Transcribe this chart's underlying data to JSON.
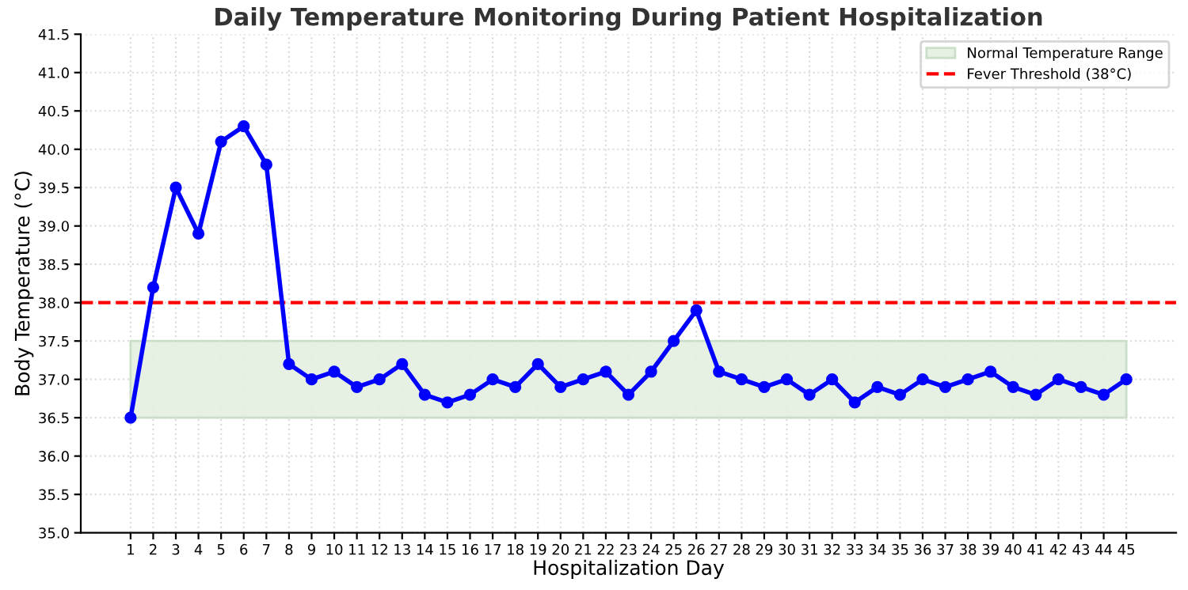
{
  "chart_data": {
    "type": "line",
    "title": "Daily Temperature Monitoring During Patient Hospitalization",
    "xlabel": "Hospitalization Day",
    "ylabel": "Body Temperature (°C)",
    "x": [
      1,
      2,
      3,
      4,
      5,
      6,
      7,
      8,
      9,
      10,
      11,
      12,
      13,
      14,
      15,
      16,
      17,
      18,
      19,
      20,
      21,
      22,
      23,
      24,
      25,
      26,
      27,
      28,
      29,
      30,
      31,
      32,
      33,
      34,
      35,
      36,
      37,
      38,
      39,
      40,
      41,
      42,
      43,
      44,
      45
    ],
    "series": [
      {
        "color": "#0000ff",
        "values": [
          36.5,
          38.2,
          39.5,
          38.9,
          40.1,
          40.3,
          39.8,
          37.2,
          37.0,
          37.1,
          36.9,
          37.0,
          37.2,
          36.8,
          36.7,
          36.8,
          37.0,
          36.9,
          37.2,
          36.9,
          37.0,
          37.1,
          36.8,
          37.1,
          37.5,
          37.9,
          37.1,
          37.0,
          36.9,
          37.0,
          36.8,
          37.0,
          36.7,
          36.9,
          36.8,
          37.0,
          36.9,
          37.0,
          37.1,
          36.9,
          36.8,
          37.0,
          36.9,
          36.8,
          37.0
        ]
      }
    ],
    "xlim": [
      -1.2,
      47.2
    ],
    "xticks": [
      1,
      2,
      3,
      4,
      5,
      6,
      7,
      8,
      9,
      10,
      11,
      12,
      13,
      14,
      15,
      16,
      17,
      18,
      19,
      20,
      21,
      22,
      23,
      24,
      25,
      26,
      27,
      28,
      29,
      30,
      31,
      32,
      33,
      34,
      35,
      36,
      37,
      38,
      39,
      40,
      41,
      42,
      43,
      44,
      45
    ],
    "ylim": [
      35.0,
      41.5
    ],
    "yticks": [
      {
        "value": 35.0,
        "label": "35.0"
      },
      {
        "value": 35.5,
        "label": "35.5"
      },
      {
        "value": 36.0,
        "label": "36.0"
      },
      {
        "value": 36.5,
        "label": "36.5"
      },
      {
        "value": 37.0,
        "label": "37.0"
      },
      {
        "value": 37.5,
        "label": "37.5"
      },
      {
        "value": 38.0,
        "label": "38.0"
      },
      {
        "value": 38.5,
        "label": "38.5"
      },
      {
        "value": 39.0,
        "label": "39.0"
      },
      {
        "value": 39.5,
        "label": "39.5"
      },
      {
        "value": 40.0,
        "label": "40.0"
      },
      {
        "value": 40.5,
        "label": "40.5"
      },
      {
        "value": 41.0,
        "label": "41.0"
      },
      {
        "value": 41.5,
        "label": "41.5"
      }
    ],
    "bands": [
      {
        "axis": "y",
        "from": 36.5,
        "to": 37.5,
        "label": "Normal Temperature Range",
        "color": "#e3f0e0"
      }
    ],
    "ref_lines": [
      {
        "axis": "y",
        "value": 38.0,
        "label": "Fever Threshold (38°C)",
        "color": "#ff0000",
        "line_style": "dashed"
      }
    ],
    "grid": true,
    "legend": "top right",
    "marker": "circle",
    "line_style": "solid"
  }
}
